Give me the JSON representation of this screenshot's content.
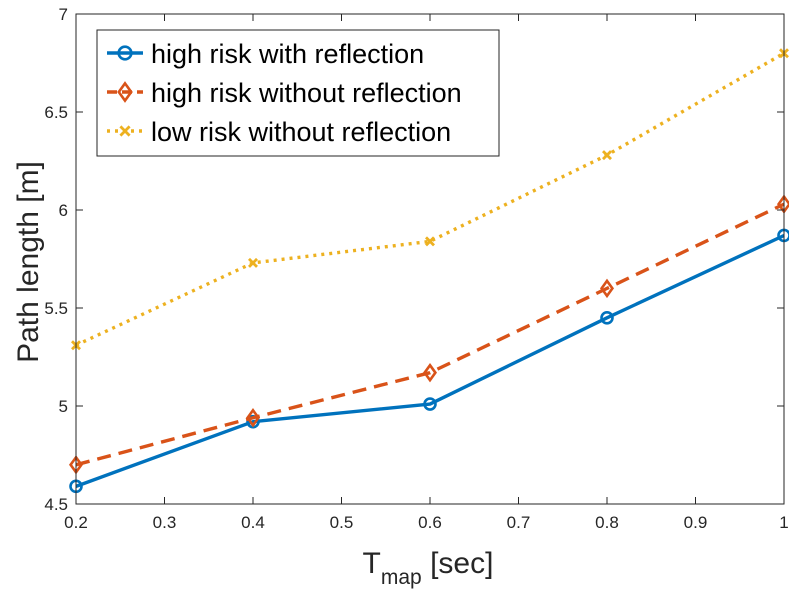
{
  "chart_data": {
    "type": "line",
    "title": "",
    "xlabel": {
      "main": "T",
      "subscript": "map",
      "suffix": " [sec]"
    },
    "ylabel": "Path length [m]",
    "xlim": [
      0.2,
      1
    ],
    "ylim": [
      4.5,
      7
    ],
    "xticks": [
      0.2,
      0.3,
      0.4,
      0.5,
      0.6,
      0.7,
      0.8,
      0.9,
      1
    ],
    "xtick_labels": [
      "0.2",
      "0.3",
      "0.4",
      "0.5",
      "0.6",
      "0.7",
      "0.8",
      "0.9",
      "1"
    ],
    "yticks": [
      4.5,
      5,
      5.5,
      6,
      6.5,
      7
    ],
    "ytick_labels": [
      "4.5",
      "5",
      "5.5",
      "6",
      "6.5",
      "7"
    ],
    "grid": false,
    "legend_position": "top-left",
    "x": [
      0.2,
      0.4,
      0.6,
      0.8,
      1.0
    ],
    "series": [
      {
        "name": "high risk with reflection",
        "values": [
          4.59,
          4.92,
          5.01,
          5.45,
          5.87
        ],
        "color": "#0072BD",
        "line_style": "solid",
        "marker": "circle"
      },
      {
        "name": "high risk without reflection",
        "values": [
          4.7,
          4.94,
          5.17,
          5.6,
          6.03
        ],
        "color": "#D95319",
        "line_style": "dashed",
        "marker": "diamond"
      },
      {
        "name": "low risk without reflection",
        "values": [
          5.31,
          5.73,
          5.84,
          6.28,
          6.8
        ],
        "color": "#EDB120",
        "line_style": "dotted",
        "marker": "x"
      }
    ]
  }
}
